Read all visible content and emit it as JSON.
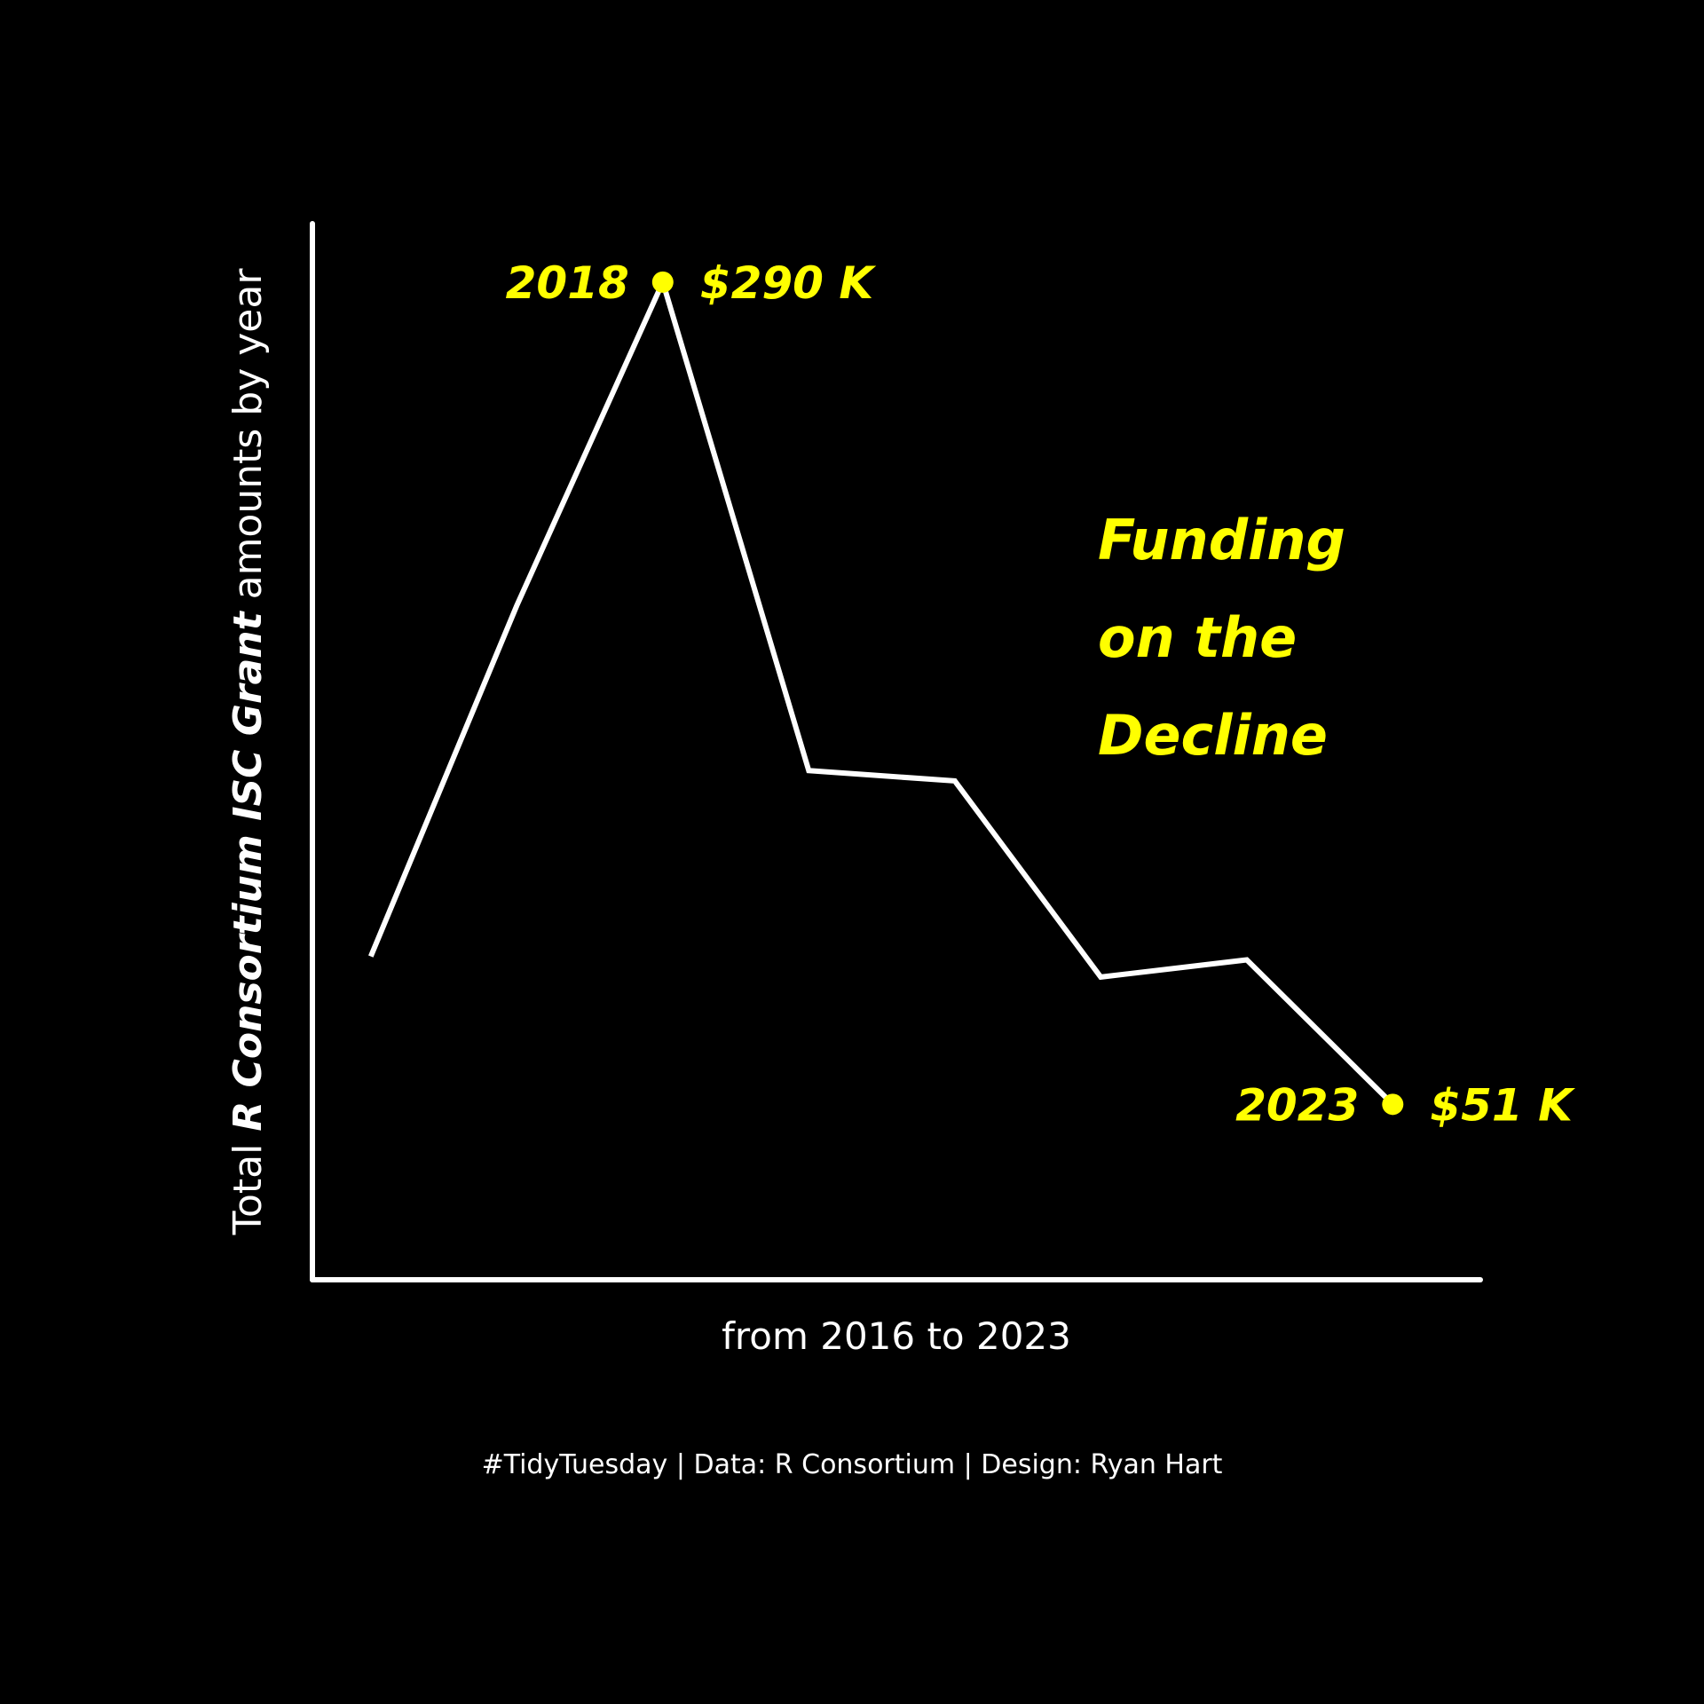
{
  "chart_data": {
    "type": "line",
    "title": "Funding on the Decline",
    "x": [
      2016,
      2017,
      2018,
      2019,
      2020,
      2021,
      2022,
      2023
    ],
    "values": [
      94,
      196,
      290,
      148,
      145,
      88,
      93,
      51
    ],
    "xlim": [
      2015.6,
      2023.6
    ],
    "ylim": [
      0,
      307
    ],
    "xlabel": "from 2016 to 2023",
    "ylabel": {
      "prefix": "Total ",
      "bold": "R Consortium ISC Grant",
      "suffix": " amounts by year"
    },
    "highlights": [
      {
        "year_label": "2018",
        "value_label": "$290 K",
        "index": 2
      },
      {
        "year_label": "2023",
        "value_label": "$51 K",
        "index": 7
      }
    ],
    "annotation": [
      "Funding",
      "on the",
      "Decline"
    ],
    "grid": false,
    "legend": "none",
    "colors": {
      "background": "#000000",
      "line": "#ffffff",
      "highlight": "#ffff00"
    }
  },
  "caption": "#TidyTuesday | Data: R Consortium | Design: Ryan Hart"
}
